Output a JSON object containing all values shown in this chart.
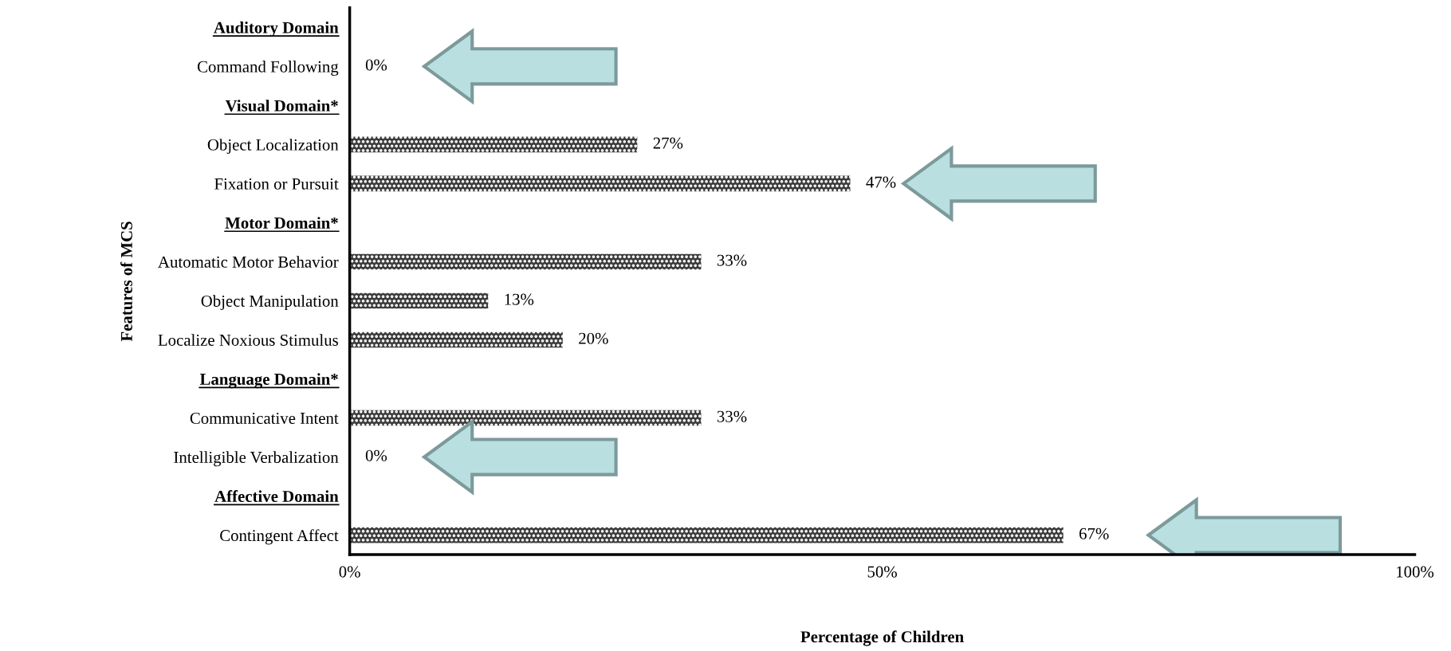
{
  "chart_data": {
    "type": "bar",
    "orientation": "horizontal",
    "xlabel": "Percentage of Children",
    "ylabel": "Features of MCS",
    "categories": [
      "Auditory Domain",
      "Command Following",
      "Visual Domain*",
      "Object Localization",
      "Fixation or Pursuit",
      "Motor Domain*",
      "Automatic Motor Behavior",
      "Object Manipulation",
      "Localize Noxious Stimulus",
      "Language Domain*",
      "Communicative Intent",
      "Intelligible Verbalization",
      "Affective Domain",
      "Contingent Affect"
    ],
    "values": [
      null,
      0,
      null,
      27,
      47,
      null,
      33,
      13,
      20,
      null,
      33,
      0,
      null,
      67
    ],
    "value_labels": [
      null,
      "0%",
      null,
      "27%",
      "47%",
      null,
      "33%",
      "13%",
      "20%",
      null,
      "33%",
      "0%",
      null,
      "67%"
    ],
    "color": "#3c3c3c",
    "xlim": [
      0,
      100
    ],
    "xticks": [
      {
        "value": 0,
        "label": "0%"
      },
      {
        "value": 50,
        "label": "50%"
      },
      {
        "value": 100,
        "label": "100%"
      }
    ],
    "grid": false,
    "legend": false
  }
}
